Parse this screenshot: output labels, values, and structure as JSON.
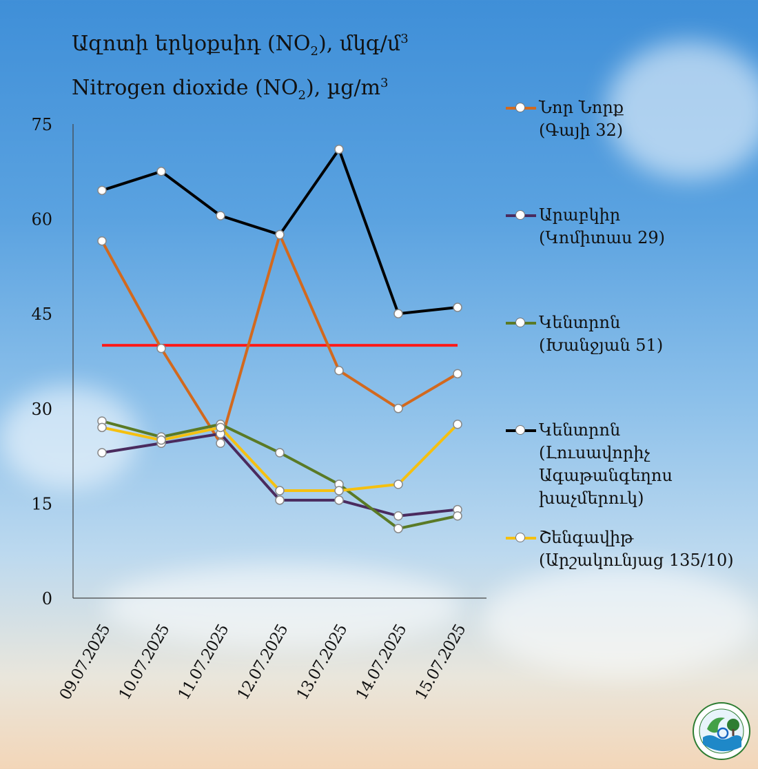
{
  "title": {
    "line1_prefix": "Ազոտի  երկօքսիդ (NO",
    "line1_sub": "2",
    "line1_suffix": "), մկգ/մ",
    "line1_sup": "3",
    "line2_prefix": "Nitrogen  dioxide (NO",
    "line2_sub": "2",
    "line2_suffix": "), µg/m",
    "line2_sup": "3"
  },
  "chart_data": {
    "type": "line",
    "categories": [
      "09.07.2025",
      "10.07.2025",
      "11.07.2025",
      "12.07.2025",
      "13.07.2025",
      "14.07.2025",
      "15.07.2025"
    ],
    "ylim": [
      0,
      75
    ],
    "yticks": [
      "0",
      "15",
      "30",
      "45",
      "60",
      "75"
    ],
    "grid": false,
    "legend_position": "right",
    "threshold": {
      "value": 40,
      "color": "#ff1a1a"
    },
    "series": [
      {
        "name_line1": "Նոր Նորք",
        "name_line2": "(Գայի 32)",
        "color": "#d2691e",
        "values": [
          56.5,
          39.5,
          24.5,
          57.5,
          36,
          30,
          35.5
        ]
      },
      {
        "name_line1": "Արաբկիր",
        "name_line2": "(Կոմիտաս 29)",
        "color": "#4a2b5e",
        "values": [
          23,
          24.5,
          26,
          15.5,
          15.5,
          13,
          14
        ]
      },
      {
        "name_line1": "Կենտրոն",
        "name_line2": "(Խանջյան 51)",
        "color": "#5a7a26",
        "values": [
          28,
          25.5,
          27.5,
          23,
          18,
          11,
          13
        ]
      },
      {
        "name_line1": "Կենտրոն",
        "name_line2": "(Լուսավորիչ",
        "name_line3": "Ագաթանգեղոս",
        "name_line4": "խաչմերուկ)",
        "color": "#000000",
        "values": [
          64.5,
          67.5,
          60.5,
          57.5,
          71,
          45,
          46
        ]
      },
      {
        "name_line1": "Շենգավիթ",
        "name_line2": "(Արշակունյաց 135/10)",
        "color": "#f5c010",
        "values": [
          27,
          25,
          27,
          17,
          17,
          18,
          27.5
        ]
      }
    ]
  },
  "logo": {
    "icon": "monitoring-center-emblem-icon"
  }
}
